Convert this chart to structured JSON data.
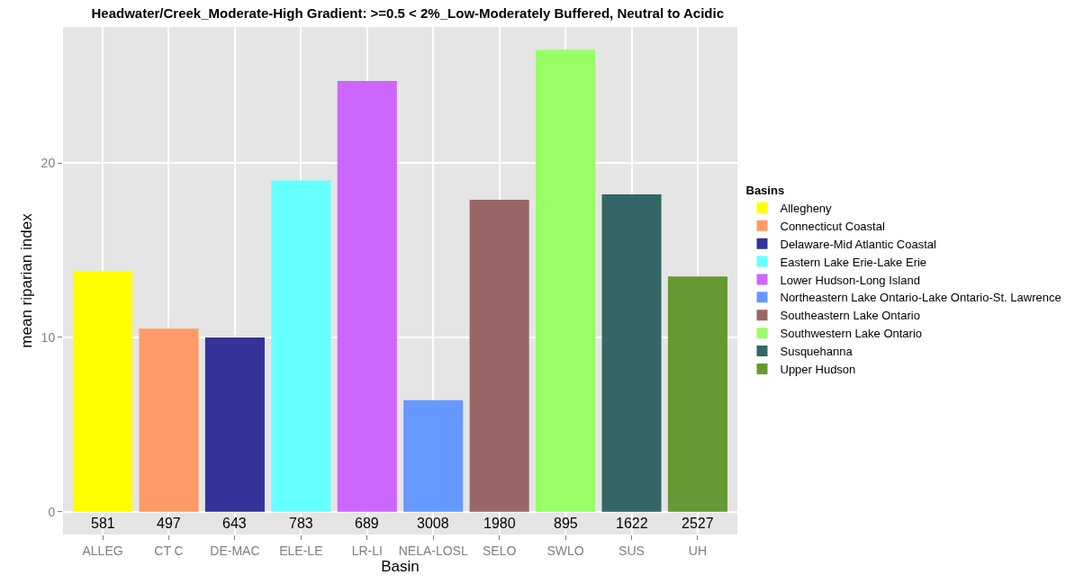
{
  "chart_data": {
    "type": "bar",
    "title": "Headwater/Creek_Moderate-High Gradient: >=0.5 < 2%_Low-Moderately Buffered, Neutral to Acidic",
    "xlabel": "Basin",
    "ylabel": "mean riparian index",
    "legend_title": "Basins",
    "categories": [
      "ALLEG",
      "CT C",
      "DE-MAC",
      "ELE-LE",
      "LR-LI",
      "NELA-LOSL",
      "SELO",
      "SWLO",
      "SUS",
      "UH"
    ],
    "series": [
      {
        "name": "Allegheny",
        "color": "#ffff00",
        "values": [
          13.8,
          null,
          null,
          null,
          null,
          null,
          null,
          null,
          null,
          null
        ]
      },
      {
        "name": "Connecticut Coastal",
        "color": "#ff9966",
        "values": [
          null,
          10.5,
          null,
          null,
          null,
          null,
          null,
          null,
          null,
          null
        ]
      },
      {
        "name": "Delaware-Mid Atlantic Coastal",
        "color": "#333399",
        "values": [
          null,
          null,
          10.0,
          null,
          null,
          null,
          null,
          null,
          null,
          null
        ]
      },
      {
        "name": "Eastern Lake Erie-Lake Erie",
        "color": "#66ffff",
        "values": [
          null,
          null,
          null,
          19.0,
          null,
          null,
          null,
          null,
          null,
          null
        ]
      },
      {
        "name": "Lower Hudson-Long Island",
        "color": "#cc66ff",
        "values": [
          null,
          null,
          null,
          null,
          24.7,
          null,
          null,
          null,
          null,
          null
        ]
      },
      {
        "name": "Northeastern Lake Ontario-Lake Ontario-St. Lawrence",
        "color": "#6699ff",
        "values": [
          null,
          null,
          null,
          null,
          null,
          6.4,
          null,
          null,
          null,
          null
        ]
      },
      {
        "name": "Southeastern Lake Ontario",
        "color": "#996666",
        "values": [
          null,
          null,
          null,
          null,
          null,
          null,
          17.9,
          null,
          null,
          null
        ]
      },
      {
        "name": "Southwestern Lake Ontario",
        "color": "#99ff66",
        "values": [
          null,
          null,
          null,
          null,
          null,
          null,
          null,
          26.5,
          null,
          null
        ]
      },
      {
        "name": "Susquehanna",
        "color": "#336666",
        "values": [
          null,
          null,
          null,
          null,
          null,
          null,
          null,
          null,
          18.2,
          null
        ]
      },
      {
        "name": "Upper Hudson",
        "color": "#669933",
        "values": [
          null,
          null,
          null,
          null,
          null,
          null,
          null,
          null,
          null,
          13.5
        ]
      }
    ],
    "annotations": [
      "581",
      "497",
      "643",
      "783",
      "689",
      "3008",
      "1980",
      "895",
      "1622",
      "2527"
    ],
    "ylim": [
      -1.3,
      27.8
    ],
    "yticks": [
      0,
      10,
      20
    ],
    "grid": true,
    "legend": "right"
  }
}
